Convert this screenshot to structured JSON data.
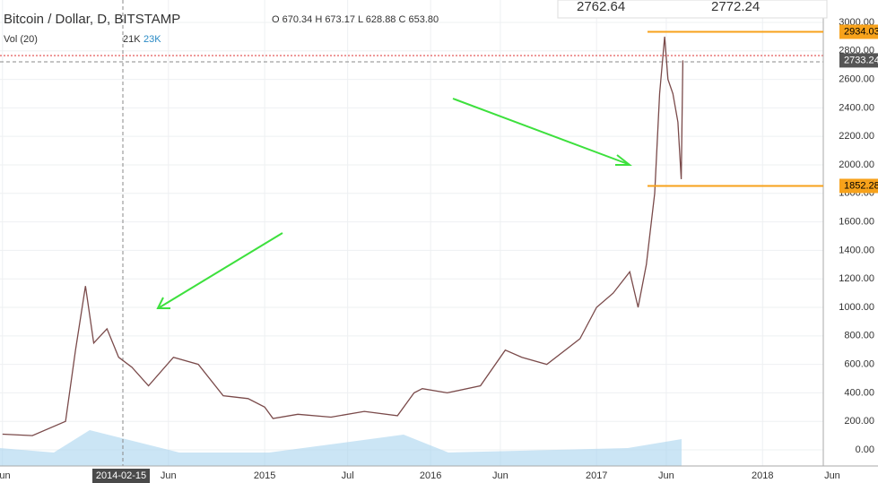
{
  "chart_data": {
    "type": "line",
    "title": "Bitcoin / Dollar, D, BITSTAMP",
    "ohlc_text": "O 670.34 H 673.17 L 628.88 C 653.80",
    "volume_title": "Vol (20)",
    "volume_values": [
      "21K",
      "23K"
    ],
    "top_quotes": [
      "2762.64",
      "2772.24"
    ],
    "crosshair_label": "2014-02-15",
    "x": [
      2013.42,
      2013.6,
      2013.8,
      2013.86,
      2013.92,
      2013.97,
      2014.05,
      2014.12,
      2014.2,
      2014.3,
      2014.45,
      2014.6,
      2014.75,
      2014.9,
      2015.0,
      2015.05,
      2015.2,
      2015.4,
      2015.6,
      2015.8,
      2015.9,
      2015.95,
      2016.1,
      2016.3,
      2016.45,
      2016.55,
      2016.7,
      2016.9,
      2017.0,
      2017.1,
      2017.2,
      2017.25,
      2017.3,
      2017.35,
      2017.38,
      2017.41,
      2017.43,
      2017.46,
      2017.49,
      2017.51,
      2017.52
    ],
    "values": [
      110,
      100,
      200,
      700,
      1150,
      750,
      850,
      650,
      580,
      450,
      650,
      600,
      380,
      360,
      300,
      220,
      250,
      230,
      270,
      240,
      400,
      430,
      400,
      450,
      700,
      650,
      600,
      780,
      1000,
      1100,
      1250,
      1000,
      1300,
      1800,
      2500,
      2900,
      2600,
      2500,
      2300,
      1900,
      2733.24
    ],
    "color": "#7a4a4a",
    "price_lines": [
      {
        "value": 2934.03,
        "color": "#f7a21b"
      },
      {
        "value": 1852.28,
        "color": "#f7a21b"
      }
    ],
    "last_price": 2733.24,
    "xlim": [
      2013.405,
      2018.35
    ],
    "xticks": [
      {
        "value": 2013.42,
        "label": "Jun"
      },
      {
        "value": 2014.42,
        "label": "Jun"
      },
      {
        "value": 2015.0,
        "label": "2015"
      },
      {
        "value": 2015.5,
        "label": "Jul"
      },
      {
        "value": 2016.0,
        "label": "2016"
      },
      {
        "value": 2016.42,
        "label": "Jun"
      },
      {
        "value": 2017.0,
        "label": "2017"
      },
      {
        "value": 2017.42,
        "label": "Jun"
      },
      {
        "value": 2018.0,
        "label": "2018"
      },
      {
        "value": 2018.42,
        "label": "Jun"
      }
    ],
    "ylim": [
      -113,
      3157
    ],
    "yticks": [
      {
        "value": 0,
        "label": "0.00"
      },
      {
        "value": 200,
        "label": "200.00"
      },
      {
        "value": 400,
        "label": "400.00"
      },
      {
        "value": 600,
        "label": "600.00"
      },
      {
        "value": 800,
        "label": "800.00"
      },
      {
        "value": 1000,
        "label": "1000.00"
      },
      {
        "value": 1200,
        "label": "1200.00"
      },
      {
        "value": 1400,
        "label": "1400.00"
      },
      {
        "value": 1600,
        "label": "1600.00"
      },
      {
        "value": 1800,
        "label": "1800.00"
      },
      {
        "value": 2000,
        "label": "2000.00"
      },
      {
        "value": 2200,
        "label": "2200.00"
      },
      {
        "value": 2400,
        "label": "2400.00"
      },
      {
        "value": 2600,
        "label": "2600.00"
      },
      {
        "value": 2800,
        "label": "2800.00"
      },
      {
        "value": 3000,
        "label": "3000.00"
      }
    ],
    "grid": true
  }
}
